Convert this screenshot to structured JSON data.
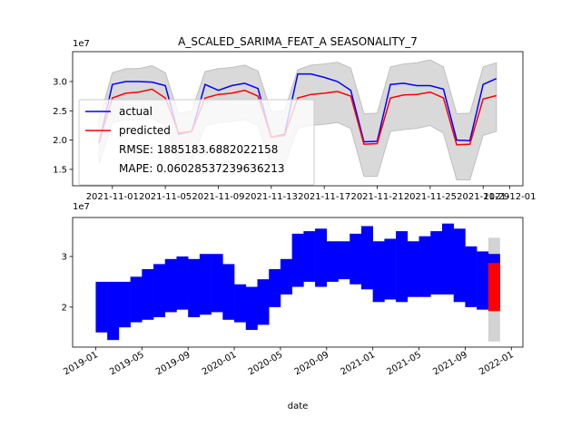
{
  "chart_data": [
    {
      "type": "line",
      "title": "A_SCALED_SARIMA_FEAT_A SEASONALITY_7",
      "y_offset_label": "1e7",
      "x": [
        "2021-10-31",
        "2021-11-01",
        "2021-11-02",
        "2021-11-03",
        "2021-11-04",
        "2021-11-05",
        "2021-11-06",
        "2021-11-07",
        "2021-11-08",
        "2021-11-09",
        "2021-11-10",
        "2021-11-11",
        "2021-11-12",
        "2021-11-13",
        "2021-11-14",
        "2021-11-15",
        "2021-11-16",
        "2021-11-17",
        "2021-11-18",
        "2021-11-19",
        "2021-11-20",
        "2021-11-21",
        "2021-11-22",
        "2021-11-23",
        "2021-11-24",
        "2021-11-25",
        "2021-11-26",
        "2021-11-27",
        "2021-11-28",
        "2021-11-29",
        "2021-11-30"
      ],
      "series": [
        {
          "name": "actual",
          "color": "#0000ff",
          "values": [
            1.95,
            2.95,
            3.0,
            3.0,
            2.99,
            2.93,
            2.1,
            2.15,
            2.95,
            2.85,
            2.93,
            2.97,
            2.88,
            2.05,
            2.1,
            3.13,
            3.13,
            3.07,
            3.0,
            2.85,
            1.97,
            1.98,
            2.95,
            2.97,
            2.93,
            2.93,
            2.87,
            2.0,
            1.99,
            2.95,
            3.05
          ]
        },
        {
          "name": "predicted",
          "color": "#ff0000",
          "values": [
            1.97,
            2.72,
            2.8,
            2.82,
            2.87,
            2.72,
            2.12,
            2.15,
            2.72,
            2.78,
            2.8,
            2.85,
            2.75,
            2.05,
            2.08,
            2.72,
            2.78,
            2.8,
            2.83,
            2.75,
            1.93,
            1.94,
            2.72,
            2.77,
            2.78,
            2.82,
            2.72,
            1.92,
            1.93,
            2.7,
            2.76
          ]
        }
      ],
      "band": {
        "color": "#d9d9d9",
        "edge_color": "#bfbfbf",
        "upper": [
          2.35,
          3.15,
          3.22,
          3.22,
          3.27,
          3.15,
          2.45,
          2.5,
          3.17,
          3.22,
          3.24,
          3.28,
          3.18,
          2.48,
          2.5,
          3.2,
          3.28,
          3.3,
          3.33,
          3.23,
          2.45,
          2.46,
          3.25,
          3.3,
          3.32,
          3.37,
          3.25,
          2.45,
          2.46,
          3.25,
          3.32
        ],
        "lower": [
          1.6,
          2.3,
          2.35,
          2.35,
          2.38,
          2.25,
          1.6,
          1.65,
          2.25,
          2.3,
          2.32,
          2.35,
          2.25,
          1.55,
          1.58,
          2.2,
          2.25,
          2.27,
          2.3,
          2.2,
          1.38,
          1.38,
          2.15,
          2.18,
          2.2,
          2.25,
          2.12,
          1.32,
          1.32,
          2.08,
          2.15
        ]
      },
      "legend_notes": [
        "RMSE: 1885183.6882022158",
        "MAPE: 0.06028537239636213"
      ],
      "legend": "upper left",
      "xlim": [
        "2021-10-29",
        "2021-12-02"
      ],
      "xticks": [
        "2021-11-01",
        "2021-11-05",
        "2021-11-09",
        "2021-11-13",
        "2021-11-17",
        "2021-11-21",
        "2021-11-25",
        "2021-11-29",
        "2021-12-01"
      ],
      "ylim": [
        1.22,
        3.51
      ],
      "yticks": [
        1.5,
        {
          "value": 2,
          "label": "2.0"
        },
        2.5,
        {
          "value": 3,
          "label": "3.0"
        }
      ],
      "grid": false
    },
    {
      "type": "range",
      "y_offset_label": "1e7",
      "xlabel": "date",
      "x": [
        "2019-01",
        "2019-02",
        "2019-03",
        "2019-04",
        "2019-05",
        "2019-06",
        "2019-07",
        "2019-08",
        "2019-09",
        "2019-10",
        "2019-11",
        "2019-12",
        "2020-01",
        "2020-02",
        "2020-03",
        "2020-04",
        "2020-05",
        "2020-06",
        "2020-07",
        "2020-08",
        "2020-09",
        "2020-10",
        "2020-11",
        "2020-12",
        "2021-01",
        "2021-02",
        "2021-03",
        "2021-04",
        "2021-05",
        "2021-06",
        "2021-07",
        "2021-08",
        "2021-09",
        "2021-10",
        "2021-11"
      ],
      "series": [
        {
          "color": "#d3d3d3",
          "high": [
            null,
            null,
            null,
            null,
            null,
            null,
            null,
            null,
            null,
            null,
            null,
            null,
            null,
            null,
            null,
            null,
            null,
            null,
            null,
            null,
            null,
            null,
            null,
            null,
            null,
            null,
            null,
            null,
            null,
            null,
            null,
            null,
            null,
            null,
            3.37
          ],
          "low": [
            null,
            null,
            null,
            null,
            null,
            null,
            null,
            null,
            null,
            null,
            null,
            null,
            null,
            null,
            null,
            null,
            null,
            null,
            null,
            null,
            null,
            null,
            null,
            null,
            null,
            null,
            null,
            null,
            null,
            null,
            null,
            null,
            null,
            null,
            1.32
          ]
        },
        {
          "color": "#0000ff",
          "high": [
            2.5,
            2.5,
            2.5,
            2.6,
            2.75,
            2.85,
            2.95,
            3.0,
            2.95,
            3.05,
            3.05,
            2.85,
            2.45,
            2.4,
            2.55,
            2.75,
            2.95,
            3.45,
            3.5,
            3.55,
            3.3,
            3.3,
            3.45,
            3.6,
            3.3,
            3.35,
            3.5,
            3.3,
            3.4,
            3.5,
            3.65,
            3.55,
            3.2,
            3.1,
            3.05
          ],
          "low": [
            1.5,
            1.35,
            1.6,
            1.7,
            1.75,
            1.8,
            1.9,
            1.95,
            1.8,
            1.85,
            1.9,
            1.75,
            1.7,
            1.55,
            1.65,
            2.0,
            2.25,
            2.4,
            2.5,
            2.4,
            2.5,
            2.55,
            2.45,
            2.35,
            2.1,
            2.15,
            2.1,
            2.2,
            2.2,
            2.25,
            2.25,
            2.1,
            2.0,
            1.95,
            1.97
          ]
        },
        {
          "color": "#ff0000",
          "high": [
            null,
            null,
            null,
            null,
            null,
            null,
            null,
            null,
            null,
            null,
            null,
            null,
            null,
            null,
            null,
            null,
            null,
            null,
            null,
            null,
            null,
            null,
            null,
            null,
            null,
            null,
            null,
            null,
            null,
            null,
            null,
            null,
            null,
            null,
            2.87
          ],
          "low": [
            null,
            null,
            null,
            null,
            null,
            null,
            null,
            null,
            null,
            null,
            null,
            null,
            null,
            null,
            null,
            null,
            null,
            null,
            null,
            null,
            null,
            null,
            null,
            null,
            null,
            null,
            null,
            null,
            null,
            null,
            null,
            null,
            null,
            null,
            1.92
          ]
        }
      ],
      "xlim": [
        "2018-11",
        "2022-02"
      ],
      "xticks": [
        "2019-01",
        "2019-05",
        "2019-09",
        "2020-01",
        "2020-05",
        "2020-09",
        "2021-01",
        "2021-05",
        "2021-09",
        "2022-01"
      ],
      "ylim": [
        1.21,
        3.77
      ],
      "yticks": [
        2,
        3
      ],
      "grid": false
    }
  ]
}
